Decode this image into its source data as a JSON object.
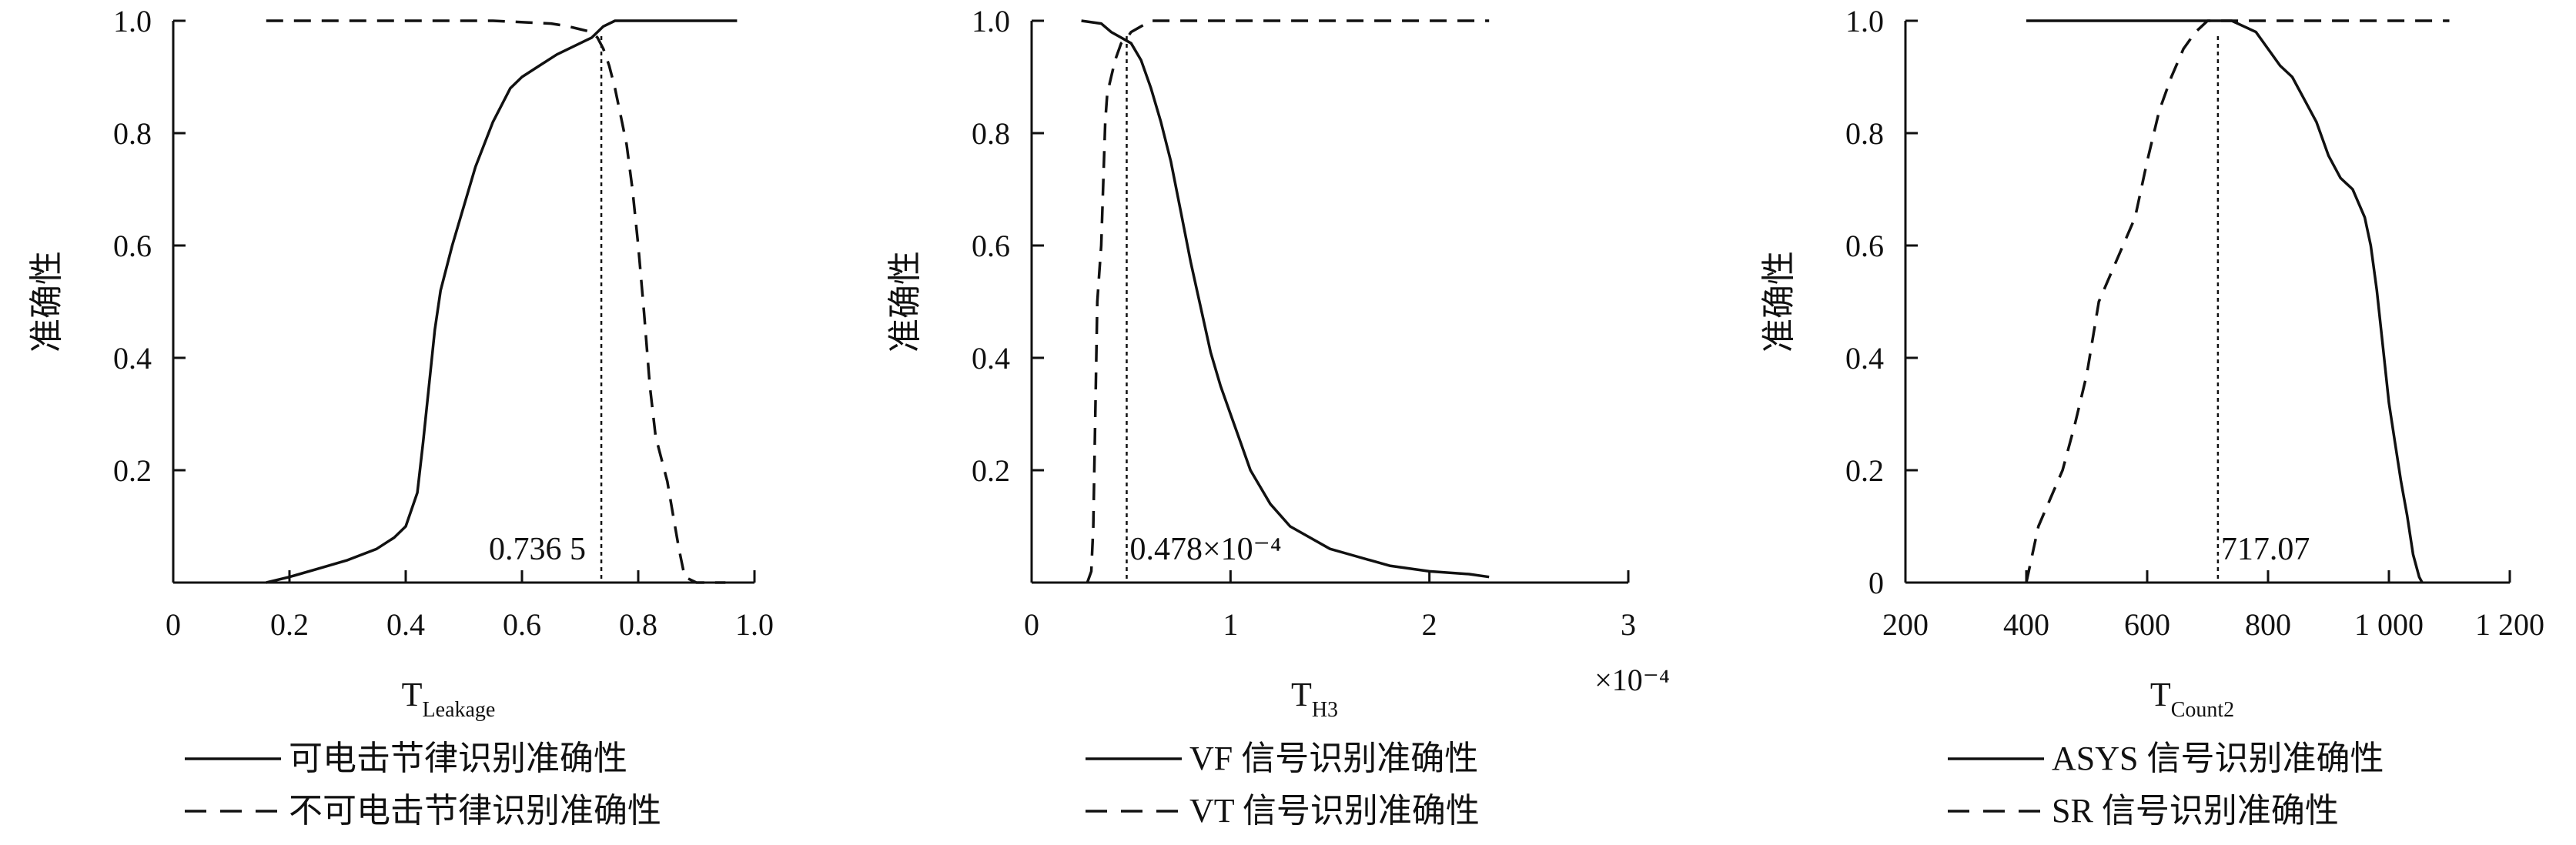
{
  "chart_data": [
    {
      "type": "line",
      "xlabel_main": "T",
      "xlabel_sub": "Leakage",
      "ylabel": "准确性",
      "xlim": [
        0,
        1.0
      ],
      "ylim": [
        0,
        1.0
      ],
      "x_ticks": [
        0,
        0.2,
        0.4,
        0.6,
        0.8,
        1.0
      ],
      "x_tick_labels": [
        "0",
        "0.2",
        "0.4",
        "0.6",
        "0.8",
        "1.0"
      ],
      "y_ticks": [
        0.2,
        0.4,
        0.6,
        0.8,
        1.0
      ],
      "y_tick_labels": [
        "0.2",
        "0.4",
        "0.6",
        "0.8",
        "1.0"
      ],
      "x_multiplier": "",
      "threshold": {
        "x": 0.7365,
        "label": "0.736 5"
      },
      "series": [
        {
          "name": "可电击节律识别准确性",
          "style": "solid",
          "x": [
            0.16,
            0.2,
            0.25,
            0.3,
            0.35,
            0.38,
            0.4,
            0.42,
            0.43,
            0.44,
            0.45,
            0.46,
            0.48,
            0.5,
            0.52,
            0.55,
            0.58,
            0.6,
            0.63,
            0.66,
            0.7,
            0.72,
            0.74,
            0.76,
            0.8,
            0.85,
            0.9,
            0.95,
            0.97
          ],
          "y": [
            0.0,
            0.01,
            0.025,
            0.04,
            0.06,
            0.08,
            0.1,
            0.16,
            0.25,
            0.35,
            0.45,
            0.52,
            0.6,
            0.67,
            0.74,
            0.82,
            0.88,
            0.9,
            0.92,
            0.94,
            0.96,
            0.97,
            0.99,
            1.0,
            1.0,
            1.0,
            1.0,
            1.0,
            1.0
          ]
        },
        {
          "name": "不可电击节律识别准确性",
          "style": "dashed",
          "x": [
            0.16,
            0.4,
            0.55,
            0.65,
            0.68,
            0.7,
            0.72,
            0.73,
            0.74,
            0.75,
            0.76,
            0.77,
            0.78,
            0.79,
            0.8,
            0.81,
            0.82,
            0.83,
            0.84,
            0.85,
            0.86,
            0.87,
            0.88,
            0.9,
            0.95
          ],
          "y": [
            1.0,
            1.0,
            1.0,
            0.995,
            0.99,
            0.985,
            0.98,
            0.97,
            0.95,
            0.92,
            0.88,
            0.83,
            0.78,
            0.7,
            0.6,
            0.48,
            0.35,
            0.26,
            0.22,
            0.18,
            0.12,
            0.06,
            0.01,
            0.0,
            0.0
          ]
        }
      ]
    },
    {
      "type": "line",
      "xlabel_main": "T",
      "xlabel_sub": "H3",
      "ylabel": "准确性",
      "xlim": [
        0,
        3
      ],
      "ylim": [
        0,
        1.0
      ],
      "x_ticks": [
        0,
        1,
        2,
        3
      ],
      "x_tick_labels": [
        "0",
        "1",
        "2",
        "3"
      ],
      "y_ticks": [
        0.2,
        0.4,
        0.6,
        0.8,
        1.0
      ],
      "y_tick_labels": [
        "0.2",
        "0.4",
        "0.6",
        "0.8",
        "1.0"
      ],
      "x_multiplier": "×10⁻⁴",
      "threshold": {
        "x": 0.478,
        "label": "0.478×10⁻⁴"
      },
      "series": [
        {
          "name": "VF 信号识别准确性",
          "style": "solid",
          "x": [
            0.25,
            0.35,
            0.4,
            0.45,
            0.5,
            0.55,
            0.6,
            0.65,
            0.7,
            0.75,
            0.8,
            0.85,
            0.9,
            0.95,
            1.0,
            1.05,
            1.1,
            1.2,
            1.3,
            1.4,
            1.5,
            1.6,
            1.8,
            2.0,
            2.2,
            2.3
          ],
          "y": [
            1.0,
            0.995,
            0.98,
            0.97,
            0.96,
            0.93,
            0.88,
            0.82,
            0.75,
            0.66,
            0.57,
            0.49,
            0.41,
            0.35,
            0.3,
            0.25,
            0.2,
            0.14,
            0.1,
            0.08,
            0.06,
            0.05,
            0.03,
            0.02,
            0.015,
            0.01
          ]
        },
        {
          "name": "VT 信号识别准确性",
          "style": "dashed",
          "x": [
            0.28,
            0.3,
            0.31,
            0.32,
            0.33,
            0.34,
            0.35,
            0.37,
            0.38,
            0.4,
            0.42,
            0.45,
            0.48,
            0.5,
            0.55,
            0.6,
            1.0,
            2.0,
            2.3
          ],
          "y": [
            0.0,
            0.02,
            0.1,
            0.3,
            0.5,
            0.55,
            0.6,
            0.82,
            0.87,
            0.9,
            0.93,
            0.96,
            0.97,
            0.98,
            0.99,
            1.0,
            1.0,
            1.0,
            1.0
          ]
        }
      ]
    },
    {
      "type": "line",
      "xlabel_main": "T",
      "xlabel_sub": "Count2",
      "ylabel": "准确性",
      "xlim": [
        200,
        1200
      ],
      "ylim": [
        0,
        1.0
      ],
      "x_ticks": [
        200,
        400,
        600,
        800,
        1000,
        1200
      ],
      "x_tick_labels": [
        "200",
        "400",
        "600",
        "800",
        "1 000",
        "1 200"
      ],
      "y_ticks": [
        0,
        0.2,
        0.4,
        0.6,
        0.8,
        1.0
      ],
      "y_tick_labels": [
        "0",
        "0.2",
        "0.4",
        "0.6",
        "0.8",
        "1.0"
      ],
      "x_multiplier": "",
      "threshold": {
        "x": 717.07,
        "label": "717.07"
      },
      "series": [
        {
          "name": "ASYS 信号识别准确性",
          "style": "solid",
          "x": [
            400,
            600,
            700,
            740,
            760,
            780,
            800,
            820,
            840,
            860,
            880,
            900,
            920,
            940,
            960,
            970,
            980,
            990,
            1000,
            1010,
            1020,
            1030,
            1040,
            1050,
            1055
          ],
          "y": [
            1.0,
            1.0,
            1.0,
            1.0,
            0.99,
            0.98,
            0.95,
            0.92,
            0.9,
            0.86,
            0.82,
            0.76,
            0.72,
            0.7,
            0.65,
            0.6,
            0.52,
            0.42,
            0.32,
            0.25,
            0.18,
            0.12,
            0.05,
            0.01,
            0.0
          ]
        },
        {
          "name": "SR 信号识别准确性",
          "style": "dashed",
          "x": [
            400,
            420,
            440,
            460,
            480,
            500,
            520,
            540,
            560,
            580,
            600,
            620,
            640,
            660,
            680,
            700,
            720,
            800,
            900,
            1000,
            1100
          ],
          "y": [
            0.0,
            0.1,
            0.15,
            0.2,
            0.28,
            0.37,
            0.5,
            0.55,
            0.6,
            0.65,
            0.75,
            0.84,
            0.9,
            0.95,
            0.98,
            1.0,
            1.0,
            1.0,
            1.0,
            1.0,
            1.0
          ]
        }
      ]
    }
  ]
}
